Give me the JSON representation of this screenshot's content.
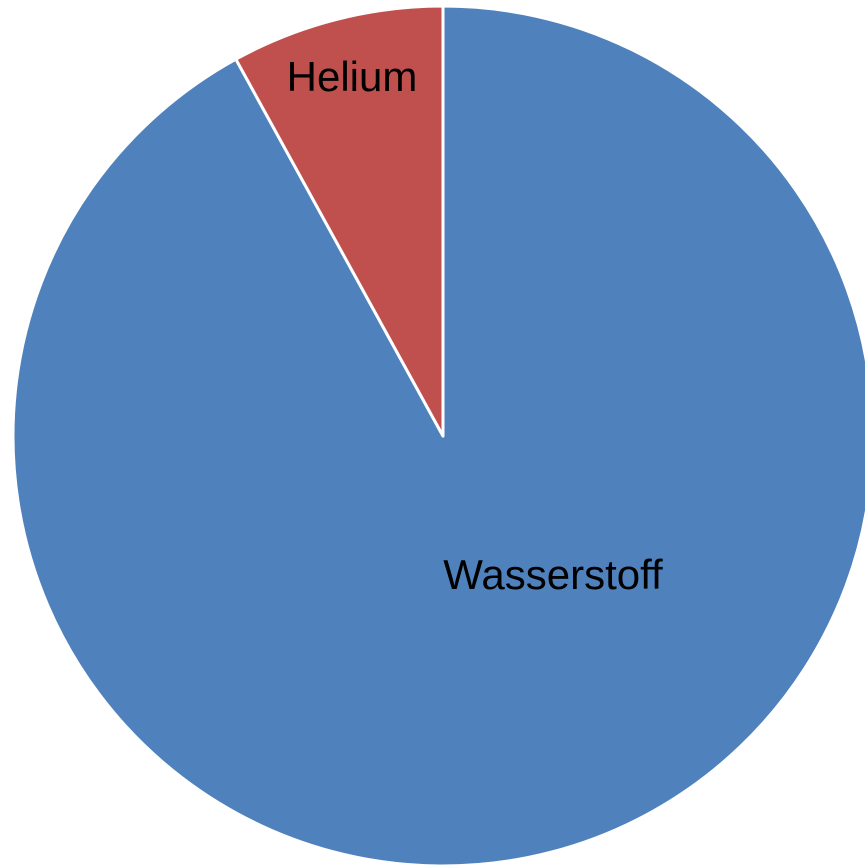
{
  "chart_data": {
    "type": "pie",
    "categories": [
      "Wasserstoff",
      "Helium"
    ],
    "values": [
      92,
      8
    ],
    "colors": [
      "#4f81bd",
      "#c0504d"
    ]
  }
}
